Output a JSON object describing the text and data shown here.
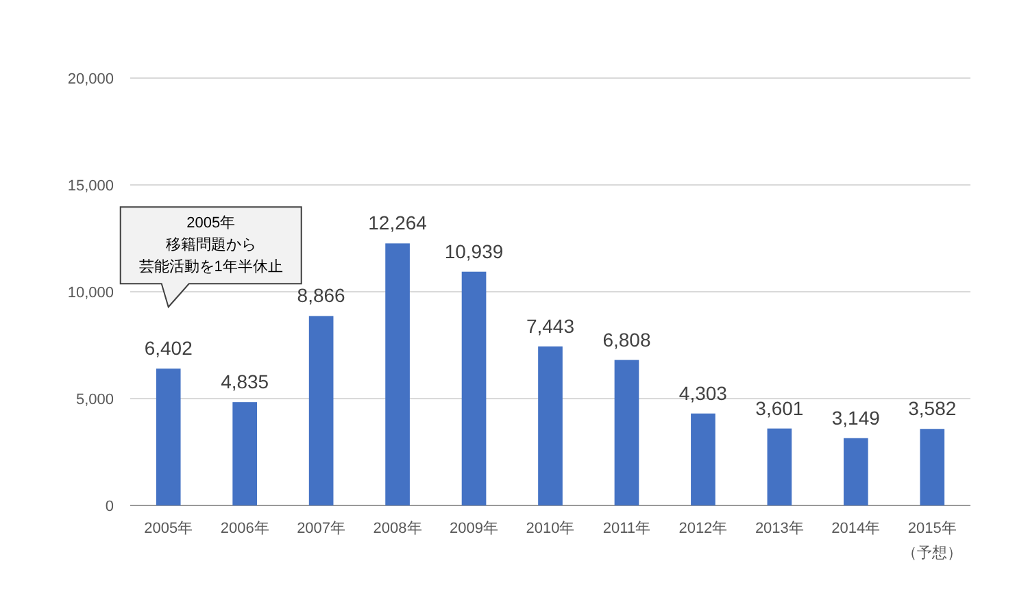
{
  "chart_data": {
    "type": "bar",
    "categories": [
      "2005年",
      "2006年",
      "2007年",
      "2008年",
      "2009年",
      "2010年",
      "2011年",
      "2012年",
      "2013年",
      "2014年",
      "2015年（予想）"
    ],
    "values": [
      6402,
      4835,
      8866,
      12264,
      10939,
      7443,
      6808,
      4303,
      3601,
      3149,
      3582
    ],
    "color": "#4472c4",
    "ylim": [
      0,
      20000
    ],
    "yticks": [
      {
        "value": 0,
        "label": "0"
      },
      {
        "value": 5000,
        "label": "5,000"
      },
      {
        "value": 10000,
        "label": "10,000"
      },
      {
        "value": 15000,
        "label": "15,000"
      },
      {
        "value": 20000,
        "label": "20,000"
      }
    ],
    "grid": "y",
    "value_labels": [
      "6,402",
      "4,835",
      "8,866",
      "12,264",
      "10,939",
      "7,443",
      "6,808",
      "4,303",
      "3,601",
      "3,149",
      "3,582"
    ],
    "annotations": [
      "2005年移籍問題から芸能活動を1年半休止"
    ]
  }
}
